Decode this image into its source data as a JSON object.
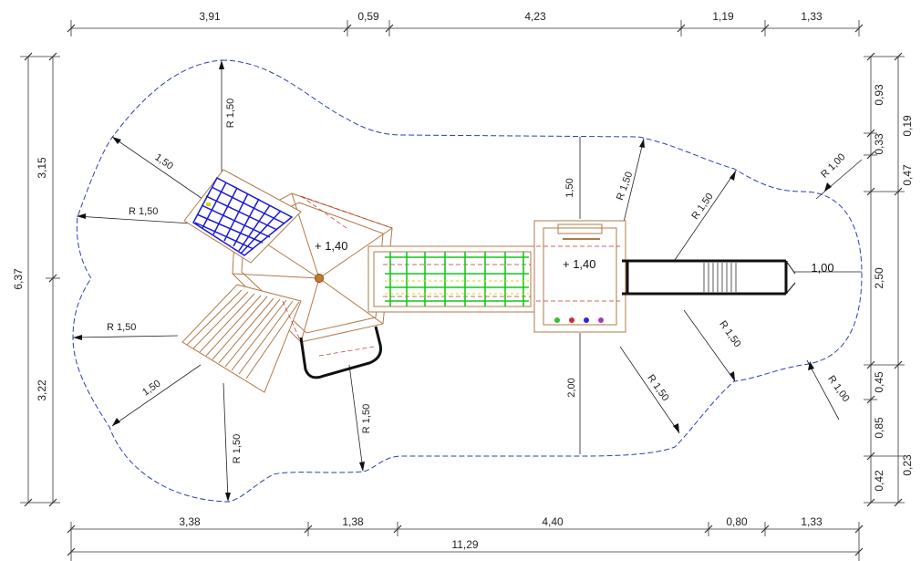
{
  "top_dimensions": [
    "3,91",
    "0,59",
    "4,23",
    "1,19",
    "1,33"
  ],
  "bottom_dimensions": [
    "3,38",
    "1,38",
    "4,40",
    "0,80",
    "1,33"
  ],
  "total_length": "11,29",
  "left_dimensions": {
    "total": "6,37",
    "upper": "3,15",
    "lower": "3,22"
  },
  "right_dimensions_inner": [
    "0,93",
    "0,33",
    "2,50",
    "0,45",
    "0,85",
    "0,42"
  ],
  "right_dimensions_outer": [
    "0,19",
    "0,47",
    "0,23"
  ],
  "radius_labels": {
    "r1": "R 1,50",
    "r2": "R 1,50",
    "r3": "R 1,50",
    "r4": "R 1,50",
    "r5": "R 1,50",
    "r6": "R 1,50",
    "r7": "R 1,50",
    "r8": "R 1,50",
    "r9": "R 1,50",
    "r10": "R 1,00",
    "r11": "R 1,00"
  },
  "distance_labels": {
    "d1": "1,50",
    "d2": "1,50",
    "d3": "1,50",
    "d4": "2,00",
    "d5": "1,00"
  },
  "height_labels": {
    "h1": "+ 1,40",
    "h2": "+ 1,40"
  },
  "colors": {
    "safety_zone": "#2b3fb8",
    "climbing_net": "#1a1ad6",
    "bridge_net": "#16c61a",
    "bridge_accent": "#d8d800",
    "slide": "#111111",
    "timber": "#b07a4a",
    "dimension_line": "#333333"
  }
}
